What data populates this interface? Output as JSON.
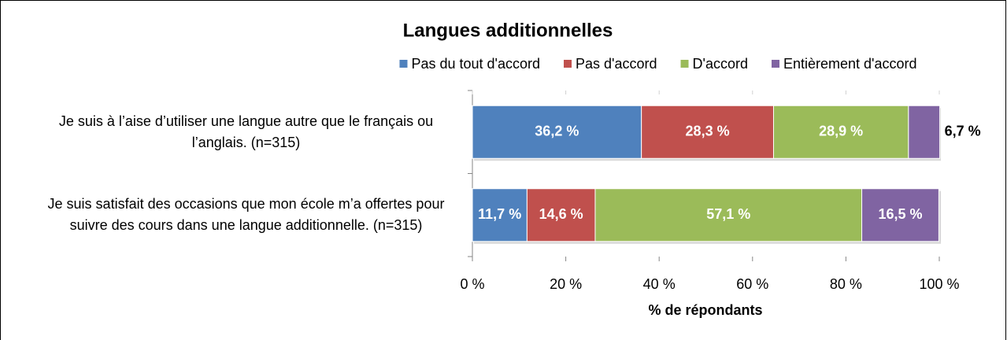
{
  "chart_data": {
    "type": "stacked-barh",
    "title": "Langues additionnelles",
    "x_label": "% de répondants",
    "categories": [
      "Je suis à l’aise d’utiliser une langue autre que le français ou l’anglais.  (n=315)",
      "Je suis satisfait des occasions que mon école m’a offertes pour suivre des cours dans une langue additionnelle. (n=315)"
    ],
    "series": [
      {
        "name": "Pas du tout d'accord",
        "color": "#4f81bd",
        "values": [
          36.2,
          11.7
        ],
        "value_labels": [
          "36,2 %",
          "11,7 %"
        ]
      },
      {
        "name": "Pas d'accord",
        "color": "#c0504d",
        "values": [
          28.3,
          14.6
        ],
        "value_labels": [
          "28,3 %",
          "14,6 %"
        ]
      },
      {
        "name": "D'accord",
        "color": "#9bbb59",
        "values": [
          28.9,
          57.1
        ],
        "value_labels": [
          "28,9 %",
          "57,1 %"
        ]
      },
      {
        "name": "Entièrement d'accord",
        "color": "#8064a2",
        "values": [
          6.7,
          16.5
        ],
        "value_labels": [
          "6,7 %",
          "16,5 %"
        ]
      }
    ],
    "xlim": [
      0,
      100
    ],
    "xticks": [
      {
        "value": 0,
        "label": "0 %"
      },
      {
        "value": 20,
        "label": "20 %"
      },
      {
        "value": 40,
        "label": "40 %"
      },
      {
        "value": 60,
        "label": "60 %"
      },
      {
        "value": 80,
        "label": "80 %"
      },
      {
        "value": 100,
        "label": "100 %"
      }
    ],
    "legend": "top",
    "grid": false
  }
}
